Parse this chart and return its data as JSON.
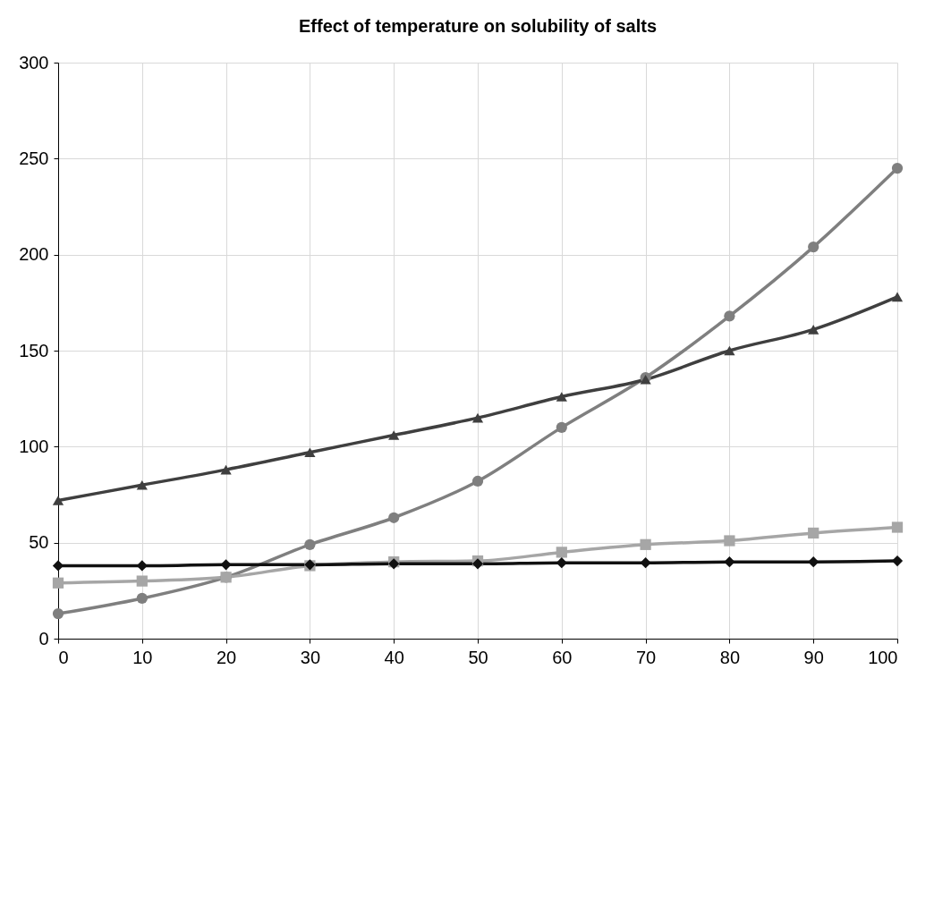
{
  "chart_data": {
    "type": "line",
    "title": "Effect of temperature on solubility of salts",
    "x": [
      0,
      10,
      20,
      30,
      40,
      50,
      60,
      70,
      80,
      90,
      100
    ],
    "xlim": [
      0,
      100
    ],
    "xticks": [
      0,
      10,
      20,
      30,
      40,
      50,
      60,
      70,
      80,
      90,
      100
    ],
    "ylim": [
      0,
      300
    ],
    "yticks": [
      0,
      50,
      100,
      150,
      200,
      250,
      300
    ],
    "grid": true,
    "line_style": "solid",
    "series": [
      {
        "color": "#7f7f7f",
        "marker": "circle",
        "values": [
          13,
          21,
          32,
          49,
          63,
          82,
          110,
          136,
          168,
          204,
          245
        ]
      },
      {
        "color": "#3f3f3f",
        "marker": "triangle",
        "values": [
          72,
          80,
          88,
          97,
          106,
          115,
          126,
          135,
          150,
          161,
          178
        ]
      },
      {
        "color": "#a6a6a6",
        "marker": "square",
        "values": [
          29,
          30,
          32,
          38,
          40,
          40.5,
          45,
          49,
          51,
          55,
          58
        ]
      },
      {
        "color": "#111111",
        "marker": "diamond",
        "values": [
          38,
          38,
          38.5,
          38.5,
          39,
          39,
          39.5,
          39.5,
          40,
          40,
          40.5
        ]
      }
    ]
  }
}
